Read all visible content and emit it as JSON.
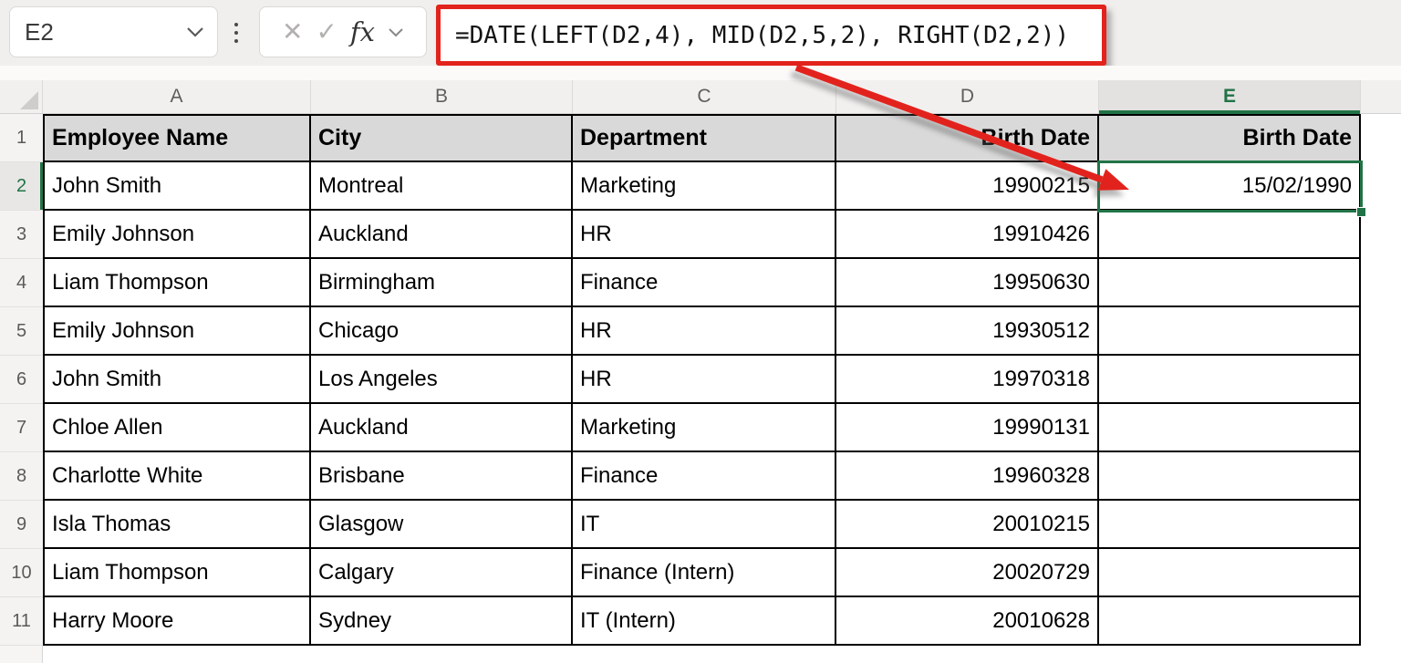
{
  "formula_bar": {
    "name_box_value": "E2",
    "formula": "=DATE(LEFT(D2,4), MID(D2,5,2), RIGHT(D2,2))",
    "icons": {
      "cancel_glyph": "✕",
      "confirm_glyph": "✓",
      "insert_function_glyph": "fx"
    }
  },
  "grid": {
    "column_letters": [
      "A",
      "B",
      "C",
      "D",
      "E"
    ],
    "selected_column": "E",
    "selected_row": 2,
    "selected_cell": "E2",
    "header_row": {
      "row": 1,
      "cells": [
        "Employee Name",
        "City",
        "Department",
        "Birth Date",
        "Birth Date"
      ]
    },
    "data_rows": [
      {
        "row": 2,
        "cells": [
          "John Smith",
          "Montreal",
          "Marketing",
          "19900215",
          "15/02/1990"
        ]
      },
      {
        "row": 3,
        "cells": [
          "Emily Johnson",
          "Auckland",
          "HR",
          "19910426",
          ""
        ]
      },
      {
        "row": 4,
        "cells": [
          "Liam Thompson",
          "Birmingham",
          "Finance",
          "19950630",
          ""
        ]
      },
      {
        "row": 5,
        "cells": [
          "Emily Johnson",
          "Chicago",
          "HR",
          "19930512",
          ""
        ]
      },
      {
        "row": 6,
        "cells": [
          "John Smith",
          "Los Angeles",
          "HR",
          "19970318",
          ""
        ]
      },
      {
        "row": 7,
        "cells": [
          "Chloe Allen",
          "Auckland",
          "Marketing",
          "19990131",
          ""
        ]
      },
      {
        "row": 8,
        "cells": [
          "Charlotte White",
          "Brisbane",
          "Finance",
          "19960328",
          ""
        ]
      },
      {
        "row": 9,
        "cells": [
          "Isla Thomas",
          "Glasgow",
          "IT",
          "20010215",
          ""
        ]
      },
      {
        "row": 10,
        "cells": [
          "Liam Thompson",
          "Calgary",
          "Finance (Intern)",
          "20020729",
          ""
        ]
      },
      {
        "row": 11,
        "cells": [
          "Harry Moore",
          "Sydney",
          "IT (Intern)",
          "20010628",
          ""
        ]
      }
    ]
  },
  "colors": {
    "accent_green": "#217346",
    "annotation_red": "#e2231d",
    "table_header_fill": "#d9d9d9",
    "grid_border": "#000000"
  }
}
